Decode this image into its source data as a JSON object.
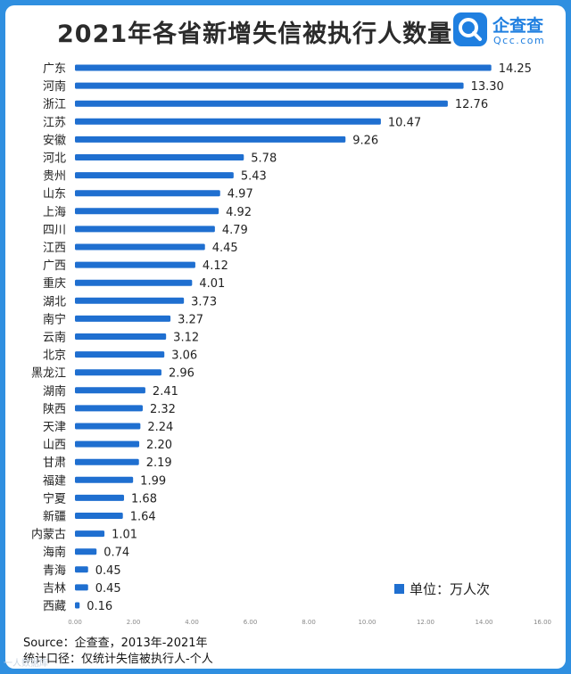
{
  "header": {
    "title": "2021年各省新增失信被执行人数量",
    "logo_name": "企查查",
    "logo_domain": "Qcc.com"
  },
  "legend": {
    "label": "单位：万人次"
  },
  "footer": {
    "source": "Source：企查查，2013年-2021年",
    "note": "统计口径：仅统计失信被执行人-个人"
  },
  "watermark": "一人数据库",
  "colors": {
    "background": "#2f8fe0",
    "bar": "#1f6fd0",
    "accent": "#1f7fe0"
  },
  "chart_data": {
    "type": "bar",
    "orientation": "horizontal",
    "title": "2021年各省新增失信被执行人数量",
    "unit": "万人次",
    "categories": [
      "广东",
      "河南",
      "浙江",
      "江苏",
      "安徽",
      "河北",
      "贵州",
      "山东",
      "上海",
      "四川",
      "江西",
      "广西",
      "重庆",
      "湖北",
      "南宁",
      "云南",
      "北京",
      "黑龙江",
      "湖南",
      "陕西",
      "天津",
      "山西",
      "甘肃",
      "福建",
      "宁夏",
      "新疆",
      "内蒙古",
      "海南",
      "青海",
      "吉林",
      "西藏"
    ],
    "values": [
      14.25,
      13.3,
      12.76,
      10.47,
      9.26,
      5.78,
      5.43,
      4.97,
      4.92,
      4.79,
      4.45,
      4.12,
      4.01,
      3.73,
      3.27,
      3.12,
      3.06,
      2.96,
      2.41,
      2.32,
      2.24,
      2.2,
      2.19,
      1.99,
      1.68,
      1.64,
      1.01,
      0.74,
      0.45,
      0.45,
      0.16
    ],
    "value_labels": [
      "14.25",
      "13.30",
      "12.76",
      "10.47",
      "9.26",
      "5.78",
      "5.43",
      "4.97",
      "4.92",
      "4.79",
      "4.45",
      "4.12",
      "4.01",
      "3.73",
      "3.27",
      "3.12",
      "3.06",
      "2.96",
      "2.41",
      "2.32",
      "2.24",
      "2.20",
      "2.19",
      "1.99",
      "1.68",
      "1.64",
      "1.01",
      "0.74",
      "0.45",
      "0.45",
      "0.16"
    ],
    "xlim": [
      0,
      16
    ],
    "xticks": [
      "0.00",
      "2.00",
      "4.00",
      "6.00",
      "8.00",
      "10.00",
      "12.00",
      "14.00",
      "16.00"
    ],
    "grid": false,
    "legend": "bottom-right"
  }
}
